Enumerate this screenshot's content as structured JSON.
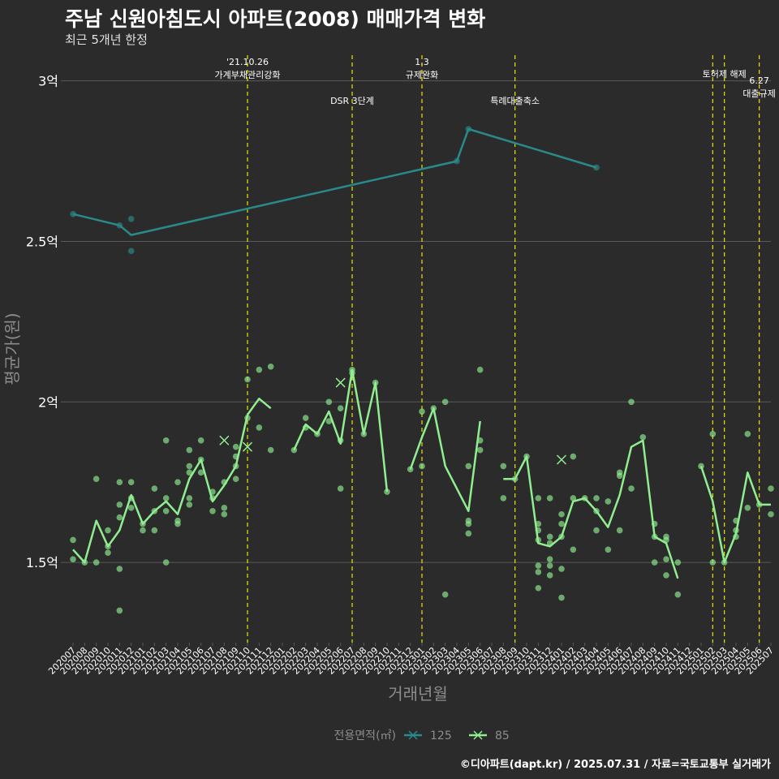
{
  "title": "주남 신원아침도시 아파트(2008) 매매가격 변화",
  "subtitle": "최근 5개년 한정",
  "caption": "©디아파트(dapt.kr) / 2025.07.31 / 자료=국토교통부 실거래가",
  "colors": {
    "background": "#2b2b2b",
    "grid": "#5a5a5a",
    "series_125": "#2a8a8a",
    "series_85": "#90ee90",
    "event_line": "#e6e600",
    "text": "#ffffff",
    "muted": "#8c8c8c"
  },
  "chart_data": {
    "type": "line",
    "title": "주남 신원아침도시 아파트(2008) 매매가격 변화",
    "subtitle": "최근 5개년 한정",
    "xlabel": "거래년월",
    "ylabel": "평균가(원)",
    "ylim": [
      1.25,
      3.08
    ],
    "y_ticks": [
      {
        "value": 1.5,
        "label": "1.5억"
      },
      {
        "value": 2.0,
        "label": "2억"
      },
      {
        "value": 2.5,
        "label": "2.5억"
      },
      {
        "value": 3.0,
        "label": "3억"
      }
    ],
    "categories": [
      "202007",
      "202008",
      "202009",
      "202010",
      "202011",
      "202012",
      "202101",
      "202102",
      "202103",
      "202104",
      "202105",
      "202106",
      "202107",
      "202108",
      "202109",
      "202110",
      "202111",
      "202112",
      "202201",
      "202202",
      "202203",
      "202204",
      "202205",
      "202206",
      "202207",
      "202208",
      "202209",
      "202210",
      "202211",
      "202212",
      "202301",
      "202302",
      "202303",
      "202304",
      "202305",
      "202306",
      "202307",
      "202308",
      "202309",
      "202310",
      "202311",
      "202312",
      "202401",
      "202402",
      "202403",
      "202404",
      "202405",
      "202406",
      "202407",
      "202408",
      "202409",
      "202410",
      "202411",
      "202412",
      "202501",
      "202502",
      "202503",
      "202504",
      "202505",
      "202506",
      "202507"
    ],
    "legend": {
      "title": "전용면적(㎡)",
      "position": "bottom",
      "entries": [
        "125",
        "85"
      ]
    },
    "grid": true,
    "events": [
      {
        "x": "202110",
        "label": "'21.10.26\n가계부채관리강화",
        "row": 1
      },
      {
        "x": "202207",
        "label": "DSR 3단계",
        "row": 2
      },
      {
        "x": "202301",
        "label": "1.3\n규제완화",
        "row": 1
      },
      {
        "x": "202309",
        "label": "특례대출축소",
        "row": 2
      },
      {
        "x": "202502",
        "label": "",
        "row": 1
      },
      {
        "x": "202503",
        "label": "토허제 해제",
        "row": 1
      },
      {
        "x": "202506",
        "label": "6.27\n대출규제",
        "row": 3
      }
    ],
    "series": [
      {
        "name": "125",
        "line": [
          {
            "x": "202007",
            "y": 2.585
          },
          {
            "x": "202011",
            "y": 2.55
          },
          {
            "x": "202012",
            "y": 2.52
          },
          {
            "x": "202304",
            "y": 2.75
          },
          {
            "x": "202305",
            "y": 2.85
          },
          {
            "x": "202404",
            "y": 2.73
          }
        ],
        "points": [
          {
            "x": "202007",
            "y": 2.585
          },
          {
            "x": "202011",
            "y": 2.55
          },
          {
            "x": "202012",
            "y": 2.57
          },
          {
            "x": "202012",
            "y": 2.47
          },
          {
            "x": "202304",
            "y": 2.75
          },
          {
            "x": "202305",
            "y": 2.85
          },
          {
            "x": "202404",
            "y": 2.73
          }
        ]
      },
      {
        "name": "85",
        "line_segments": [
          [
            {
              "x": "202007",
              "y": 1.54
            },
            {
              "x": "202008",
              "y": 1.5
            },
            {
              "x": "202009",
              "y": 1.63
            },
            {
              "x": "202010",
              "y": 1.55
            },
            {
              "x": "202011",
              "y": 1.6
            },
            {
              "x": "202012",
              "y": 1.71
            },
            {
              "x": "202101",
              "y": 1.62
            },
            {
              "x": "202102",
              "y": 1.66
            },
            {
              "x": "202103",
              "y": 1.69
            },
            {
              "x": "202104",
              "y": 1.65
            },
            {
              "x": "202105",
              "y": 1.76
            },
            {
              "x": "202106",
              "y": 1.82
            },
            {
              "x": "202107",
              "y": 1.69
            },
            {
              "x": "202108",
              "y": 1.74
            },
            {
              "x": "202109",
              "y": 1.8
            },
            {
              "x": "202110",
              "y": 1.96
            },
            {
              "x": "202111",
              "y": 2.01
            },
            {
              "x": "202112",
              "y": 1.98
            }
          ],
          [
            {
              "x": "202202",
              "y": 1.85
            },
            {
              "x": "202203",
              "y": 1.93
            },
            {
              "x": "202204",
              "y": 1.9
            },
            {
              "x": "202205",
              "y": 1.97
            },
            {
              "x": "202206",
              "y": 1.87
            },
            {
              "x": "202207",
              "y": 2.1
            },
            {
              "x": "202208",
              "y": 1.9
            },
            {
              "x": "202209",
              "y": 2.06
            },
            {
              "x": "202210",
              "y": 1.72
            }
          ],
          [
            {
              "x": "202212",
              "y": 1.79
            },
            {
              "x": "202301",
              "y": 1.89
            },
            {
              "x": "202302",
              "y": 1.98
            },
            {
              "x": "202303",
              "y": 1.8
            },
            {
              "x": "202305",
              "y": 1.66
            },
            {
              "x": "202306",
              "y": 1.94
            }
          ],
          [
            {
              "x": "202308",
              "y": 1.76
            },
            {
              "x": "202309",
              "y": 1.76
            },
            {
              "x": "202310",
              "y": 1.83
            },
            {
              "x": "202311",
              "y": 1.56
            },
            {
              "x": "202312",
              "y": 1.55
            },
            {
              "x": "202401",
              "y": 1.58
            },
            {
              "x": "202402",
              "y": 1.69
            },
            {
              "x": "202403",
              "y": 1.7
            },
            {
              "x": "202404",
              "y": 1.66
            },
            {
              "x": "202405",
              "y": 1.61
            },
            {
              "x": "202406",
              "y": 1.71
            },
            {
              "x": "202407",
              "y": 1.86
            },
            {
              "x": "202408",
              "y": 1.88
            },
            {
              "x": "202409",
              "y": 1.58
            },
            {
              "x": "202410",
              "y": 1.56
            },
            {
              "x": "202411",
              "y": 1.45
            }
          ],
          [
            {
              "x": "202501",
              "y": 1.8
            },
            {
              "x": "202502",
              "y": 1.69
            },
            {
              "x": "202503",
              "y": 1.5
            },
            {
              "x": "202504",
              "y": 1.59
            },
            {
              "x": "202505",
              "y": 1.78
            },
            {
              "x": "202506",
              "y": 1.68
            },
            {
              "x": "202507",
              "y": 1.68
            }
          ]
        ],
        "points": [
          {
            "x": "202007",
            "y": 1.57
          },
          {
            "x": "202007",
            "y": 1.51
          },
          {
            "x": "202008",
            "y": 1.5
          },
          {
            "x": "202009",
            "y": 1.76
          },
          {
            "x": "202009",
            "y": 1.5
          },
          {
            "x": "202010",
            "y": 1.6
          },
          {
            "x": "202010",
            "y": 1.55
          },
          {
            "x": "202010",
            "y": 1.53
          },
          {
            "x": "202011",
            "y": 1.75
          },
          {
            "x": "202011",
            "y": 1.68
          },
          {
            "x": "202011",
            "y": 1.64
          },
          {
            "x": "202011",
            "y": 1.48
          },
          {
            "x": "202011",
            "y": 1.35
          },
          {
            "x": "202012",
            "y": 1.75
          },
          {
            "x": "202012",
            "y": 1.7
          },
          {
            "x": "202012",
            "y": 1.67
          },
          {
            "x": "202101",
            "y": 1.62
          },
          {
            "x": "202101",
            "y": 1.6
          },
          {
            "x": "202102",
            "y": 1.73
          },
          {
            "x": "202102",
            "y": 1.6
          },
          {
            "x": "202102",
            "y": 1.66
          },
          {
            "x": "202103",
            "y": 1.88
          },
          {
            "x": "202103",
            "y": 1.7
          },
          {
            "x": "202103",
            "y": 1.66
          },
          {
            "x": "202103",
            "y": 1.5
          },
          {
            "x": "202104",
            "y": 1.75
          },
          {
            "x": "202104",
            "y": 1.63
          },
          {
            "x": "202104",
            "y": 1.62
          },
          {
            "x": "202105",
            "y": 1.85
          },
          {
            "x": "202105",
            "y": 1.8
          },
          {
            "x": "202105",
            "y": 1.78
          },
          {
            "x": "202105",
            "y": 1.7
          },
          {
            "x": "202105",
            "y": 1.68
          },
          {
            "x": "202106",
            "y": 1.88
          },
          {
            "x": "202106",
            "y": 1.82
          },
          {
            "x": "202106",
            "y": 1.78
          },
          {
            "x": "202107",
            "y": 1.72
          },
          {
            "x": "202107",
            "y": 1.7
          },
          {
            "x": "202107",
            "y": 1.66
          },
          {
            "x": "202108",
            "y": 1.75
          },
          {
            "x": "202108",
            "y": 1.67
          },
          {
            "x": "202108",
            "y": 1.65
          },
          {
            "x": "202109",
            "y": 1.86
          },
          {
            "x": "202109",
            "y": 1.83
          },
          {
            "x": "202109",
            "y": 1.8
          },
          {
            "x": "202109",
            "y": 1.76
          },
          {
            "x": "202110",
            "y": 2.07
          },
          {
            "x": "202110",
            "y": 1.95
          },
          {
            "x": "202111",
            "y": 2.1
          },
          {
            "x": "202111",
            "y": 1.92
          },
          {
            "x": "202112",
            "y": 2.11
          },
          {
            "x": "202112",
            "y": 1.85
          },
          {
            "x": "202202",
            "y": 1.85
          },
          {
            "x": "202203",
            "y": 1.95
          },
          {
            "x": "202203",
            "y": 1.92
          },
          {
            "x": "202204",
            "y": 1.9
          },
          {
            "x": "202205",
            "y": 2.0
          },
          {
            "x": "202205",
            "y": 1.94
          },
          {
            "x": "202206",
            "y": 1.98
          },
          {
            "x": "202206",
            "y": 1.88
          },
          {
            "x": "202206",
            "y": 1.73
          },
          {
            "x": "202207",
            "y": 2.1
          },
          {
            "x": "202207",
            "y": 2.09
          },
          {
            "x": "202208",
            "y": 1.9
          },
          {
            "x": "202209",
            "y": 2.06
          },
          {
            "x": "202210",
            "y": 1.72
          },
          {
            "x": "202212",
            "y": 1.79
          },
          {
            "x": "202301",
            "y": 1.97
          },
          {
            "x": "202301",
            "y": 1.8
          },
          {
            "x": "202302",
            "y": 1.98
          },
          {
            "x": "202303",
            "y": 2.0
          },
          {
            "x": "202303",
            "y": 1.4
          },
          {
            "x": "202305",
            "y": 1.8
          },
          {
            "x": "202305",
            "y": 1.63
          },
          {
            "x": "202305",
            "y": 1.62
          },
          {
            "x": "202305",
            "y": 1.59
          },
          {
            "x": "202306",
            "y": 2.1
          },
          {
            "x": "202306",
            "y": 1.88
          },
          {
            "x": "202306",
            "y": 1.85
          },
          {
            "x": "202308",
            "y": 1.8
          },
          {
            "x": "202308",
            "y": 1.7
          },
          {
            "x": "202309",
            "y": 1.76
          },
          {
            "x": "202310",
            "y": 1.83
          },
          {
            "x": "202311",
            "y": 1.7
          },
          {
            "x": "202311",
            "y": 1.62
          },
          {
            "x": "202311",
            "y": 1.6
          },
          {
            "x": "202311",
            "y": 1.57
          },
          {
            "x": "202311",
            "y": 1.49
          },
          {
            "x": "202311",
            "y": 1.47
          },
          {
            "x": "202311",
            "y": 1.42
          },
          {
            "x": "202312",
            "y": 1.7
          },
          {
            "x": "202312",
            "y": 1.58
          },
          {
            "x": "202312",
            "y": 1.56
          },
          {
            "x": "202312",
            "y": 1.51
          },
          {
            "x": "202312",
            "y": 1.49
          },
          {
            "x": "202312",
            "y": 1.46
          },
          {
            "x": "202401",
            "y": 1.65
          },
          {
            "x": "202401",
            "y": 1.62
          },
          {
            "x": "202401",
            "y": 1.58
          },
          {
            "x": "202401",
            "y": 1.48
          },
          {
            "x": "202401",
            "y": 1.39
          },
          {
            "x": "202402",
            "y": 1.83
          },
          {
            "x": "202402",
            "y": 1.7
          },
          {
            "x": "202402",
            "y": 1.54
          },
          {
            "x": "202403",
            "y": 1.7
          },
          {
            "x": "202404",
            "y": 1.7
          },
          {
            "x": "202404",
            "y": 1.66
          },
          {
            "x": "202404",
            "y": 1.6
          },
          {
            "x": "202405",
            "y": 1.69
          },
          {
            "x": "202405",
            "y": 1.54
          },
          {
            "x": "202406",
            "y": 1.78
          },
          {
            "x": "202406",
            "y": 1.77
          },
          {
            "x": "202406",
            "y": 1.6
          },
          {
            "x": "202407",
            "y": 2.0
          },
          {
            "x": "202407",
            "y": 1.73
          },
          {
            "x": "202408",
            "y": 1.89
          },
          {
            "x": "202409",
            "y": 1.62
          },
          {
            "x": "202409",
            "y": 1.58
          },
          {
            "x": "202409",
            "y": 1.5
          },
          {
            "x": "202410",
            "y": 1.58
          },
          {
            "x": "202410",
            "y": 1.57
          },
          {
            "x": "202410",
            "y": 1.51
          },
          {
            "x": "202410",
            "y": 1.46
          },
          {
            "x": "202411",
            "y": 1.5
          },
          {
            "x": "202411",
            "y": 1.4
          },
          {
            "x": "202501",
            "y": 1.8
          },
          {
            "x": "202502",
            "y": 1.9
          },
          {
            "x": "202502",
            "y": 1.5
          },
          {
            "x": "202503",
            "y": 1.5
          },
          {
            "x": "202504",
            "y": 1.63
          },
          {
            "x": "202504",
            "y": 1.6
          },
          {
            "x": "202504",
            "y": 1.58
          },
          {
            "x": "202505",
            "y": 1.9
          },
          {
            "x": "202505",
            "y": 1.67
          },
          {
            "x": "202506",
            "y": 1.68
          },
          {
            "x": "202507",
            "y": 1.73
          },
          {
            "x": "202507",
            "y": 1.65
          }
        ],
        "cross_points": [
          {
            "x": "202108",
            "y": 1.88
          },
          {
            "x": "202110",
            "y": 1.86
          },
          {
            "x": "202206",
            "y": 2.06
          },
          {
            "x": "202401",
            "y": 1.82
          }
        ]
      }
    ]
  }
}
